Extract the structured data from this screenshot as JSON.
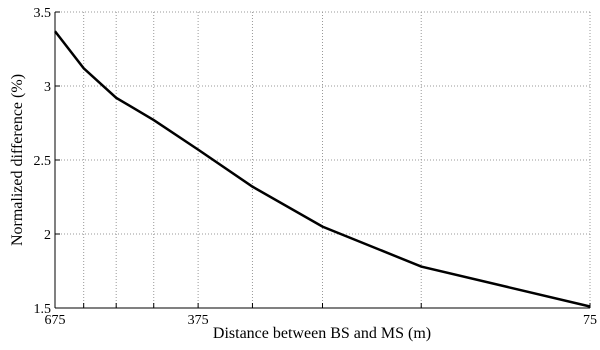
{
  "chart_data": {
    "type": "line",
    "xlabel": "Distance between BS and MS (m)",
    "ylabel": "Normalized difference (%)",
    "x": [
      675,
      600,
      525,
      450,
      375,
      300,
      225,
      150,
      75
    ],
    "series": [
      {
        "color": "#000000",
        "values": [
          3.37,
          3.12,
          2.92,
          2.77,
          2.57,
          2.32,
          2.05,
          1.78,
          1.51
        ]
      }
    ],
    "xscale": "log",
    "xlim": [
      675,
      75
    ],
    "xticks": [
      675,
      375,
      75
    ],
    "xminor": [
      600,
      525,
      450,
      300,
      225,
      150
    ],
    "ylim": [
      1.5,
      3.5
    ],
    "yticks": [
      1.5,
      2,
      2.5,
      3,
      3.5
    ],
    "grid": true
  }
}
